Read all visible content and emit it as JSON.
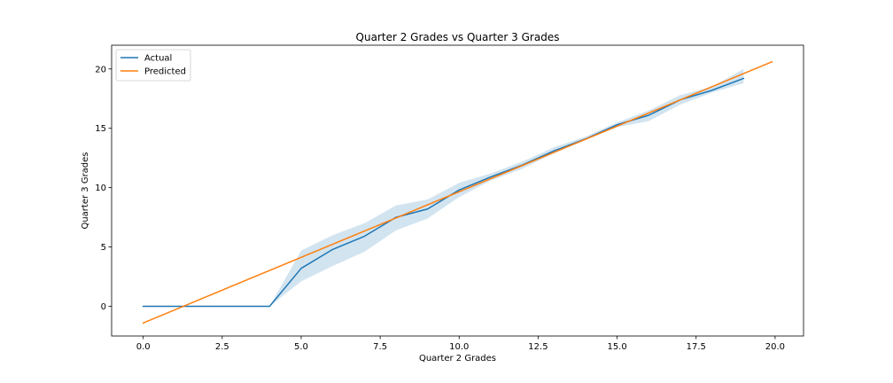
{
  "chart_data": {
    "type": "line",
    "title": "Quarter 2 Grades vs Quarter 3 Grades",
    "xlabel": "Quarter 2 Grades",
    "ylabel": "Quarter 3 Grades",
    "xlim": [
      -1.0,
      20.9
    ],
    "ylim": [
      -2.5,
      22.0
    ],
    "xticks": [
      0.0,
      2.5,
      5.0,
      7.5,
      10.0,
      12.5,
      15.0,
      17.5,
      20.0
    ],
    "xtick_labels": [
      "0.0",
      "2.5",
      "5.0",
      "7.5",
      "10.0",
      "12.5",
      "15.0",
      "17.5",
      "20.0"
    ],
    "yticks": [
      0,
      5,
      10,
      15,
      20
    ],
    "ytick_labels": [
      "0",
      "5",
      "10",
      "15",
      "20"
    ],
    "grid": false,
    "legend_position": "top-left",
    "series": [
      {
        "name": "Actual",
        "color": "#1f77b4",
        "x": [
          0,
          1,
          2,
          3,
          4,
          5,
          6,
          7,
          8,
          9,
          10,
          11,
          12,
          13,
          14,
          15,
          16,
          17,
          18,
          19
        ],
        "y": [
          0,
          0,
          0,
          0,
          0,
          3.2,
          4.8,
          5.9,
          7.5,
          8.2,
          9.8,
          10.9,
          11.9,
          13.1,
          14.1,
          15.3,
          16.1,
          17.4,
          18.2,
          19.2
        ],
        "ci_lower": [
          0,
          0,
          0,
          0,
          0,
          2.1,
          3.4,
          4.6,
          6.4,
          7.4,
          9.2,
          10.6,
          11.6,
          12.9,
          14.0,
          15.1,
          15.6,
          17.0,
          18.0,
          18.8
        ],
        "ci_upper": [
          0,
          0,
          0,
          0,
          0,
          4.7,
          6.0,
          7.0,
          8.5,
          9.0,
          10.4,
          11.2,
          12.2,
          13.4,
          14.3,
          15.5,
          16.5,
          17.8,
          18.5,
          20.0
        ],
        "ci_color": "#1f77b4"
      },
      {
        "name": "Predicted",
        "color": "#ff7f0e",
        "x": [
          0.0,
          19.9
        ],
        "y": [
          -1.4,
          20.6
        ]
      }
    ]
  }
}
